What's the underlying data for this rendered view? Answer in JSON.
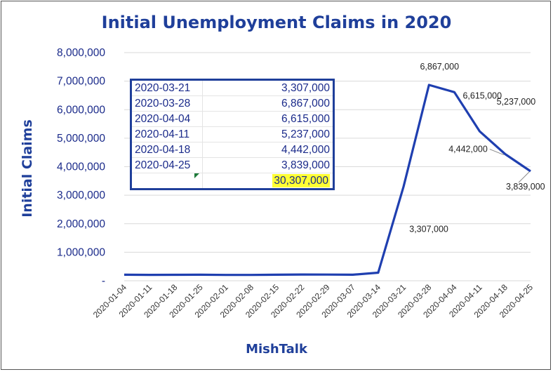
{
  "chart_data": {
    "type": "line",
    "title": "Initial Unemployment Claims in 2020",
    "xlabel": "MishTalk",
    "ylabel": "Initial Claims",
    "ylim": [
      0,
      8000000
    ],
    "yticks": [
      0,
      1000000,
      2000000,
      3000000,
      4000000,
      5000000,
      6000000,
      7000000,
      8000000
    ],
    "ytick_labels": [
      "-",
      "1,000,000",
      "2,000,000",
      "3,000,000",
      "4,000,000",
      "5,000,000",
      "6,000,000",
      "7,000,000",
      "8,000,000"
    ],
    "x": [
      "2020-01-04",
      "2020-01-11",
      "2020-01-18",
      "2020-01-25",
      "2020-02-01",
      "2020-02-08",
      "2020-02-15",
      "2020-02-22",
      "2020-02-29",
      "2020-03-07",
      "2020-03-14",
      "2020-03-21",
      "2020-03-28",
      "2020-04-04",
      "2020-04-11",
      "2020-04-18",
      "2020-04-25"
    ],
    "series": [
      {
        "values": [
          212000,
          208000,
          210000,
          212000,
          204000,
          204000,
          211000,
          220000,
          217000,
          211000,
          282000,
          3307000,
          6867000,
          6615000,
          5237000,
          4442000,
          3839000
        ],
        "color": "#1f3fb0"
      }
    ],
    "data_labels": [
      {
        "x": "2020-03-21",
        "text": "3,307,000"
      },
      {
        "x": "2020-03-28",
        "text": "6,867,000"
      },
      {
        "x": "2020-04-04",
        "text": "6,615,000"
      },
      {
        "x": "2020-04-11",
        "text": "5,237,000"
      },
      {
        "x": "2020-04-18",
        "text": "4,442,000"
      },
      {
        "x": "2020-04-25",
        "text": "3,839,000"
      }
    ],
    "grid": true,
    "legend": "none"
  },
  "table": {
    "rows": [
      {
        "date": "2020-03-21",
        "value": "3,307,000"
      },
      {
        "date": "2020-03-28",
        "value": "6,867,000"
      },
      {
        "date": "2020-04-04",
        "value": "6,615,000"
      },
      {
        "date": "2020-04-11",
        "value": "5,237,000"
      },
      {
        "date": "2020-04-18",
        "value": "4,442,000"
      },
      {
        "date": "2020-04-25",
        "value": "3,839,000"
      }
    ],
    "total": "30,307,000",
    "total_highlight_color": "#ffff33",
    "border_color": "#1f3f9a"
  }
}
